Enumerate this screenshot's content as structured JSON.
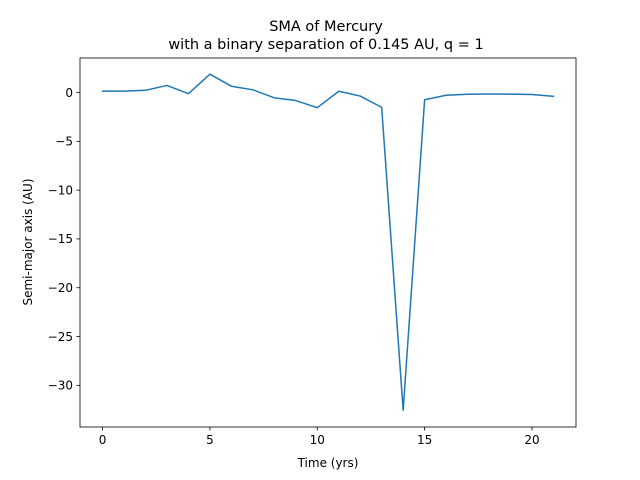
{
  "chart_data": {
    "type": "line",
    "title": "SMA of Mercury",
    "subtitle": "with a binary separation of 0.145 AU, q = 1",
    "xlabel": "Time (yrs)",
    "ylabel": "Semi-major axis (AU)",
    "xlim": [
      -1.05,
      22.05
    ],
    "ylim": [
      -34.27,
      3.54
    ],
    "xticks": [
      0,
      5,
      10,
      15,
      20
    ],
    "xtick_labels": [
      "0",
      "5",
      "10",
      "15",
      "20"
    ],
    "yticks": [
      0,
      -5,
      -10,
      -15,
      -20,
      -25,
      -30
    ],
    "ytick_labels": [
      "0",
      "−5",
      "−10",
      "−15",
      "−20",
      "−25",
      "−30"
    ],
    "grid": false,
    "series": [
      {
        "color": "#1f77b4",
        "x": [
          0,
          1,
          2,
          3,
          4,
          5,
          6,
          7,
          8,
          9,
          10,
          11,
          12,
          13,
          14,
          15,
          16,
          17,
          18,
          19,
          20,
          21
        ],
        "y": [
          0.15,
          0.14,
          0.23,
          0.73,
          -0.12,
          1.88,
          0.65,
          0.28,
          -0.54,
          -0.82,
          -1.55,
          0.13,
          -0.36,
          -1.52,
          -32.55,
          -0.74,
          -0.28,
          -0.18,
          -0.15,
          -0.16,
          -0.2,
          -0.39
        ]
      }
    ]
  }
}
